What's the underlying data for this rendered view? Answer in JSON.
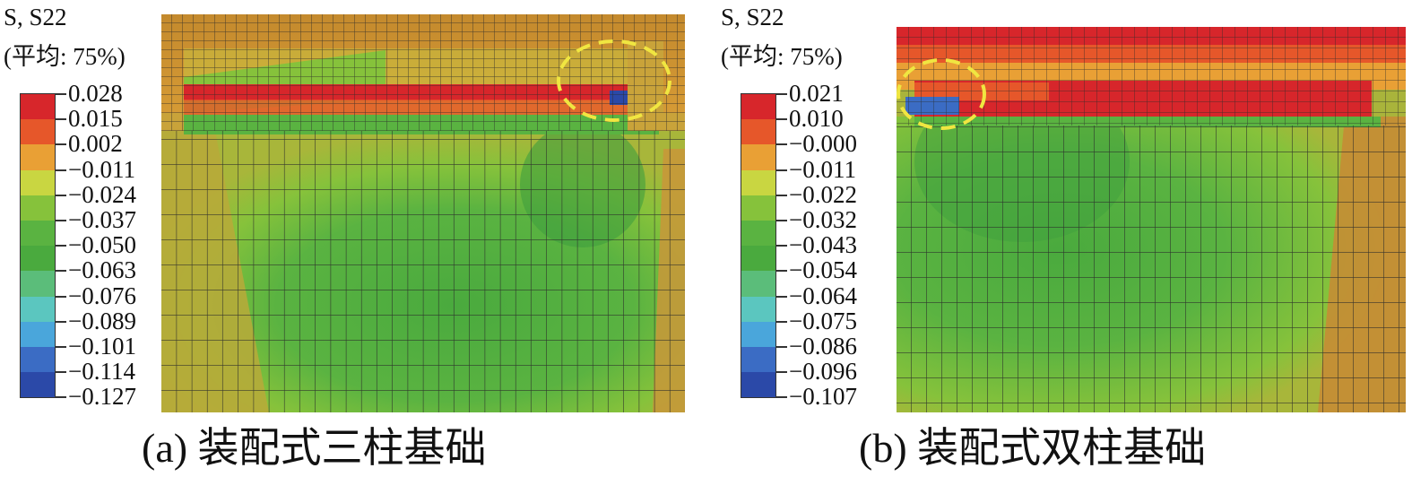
{
  "panels": [
    {
      "id": "a",
      "legend": {
        "title_line1": "S, S22",
        "title_line2": "(平均: 75%)",
        "values": [
          "0.028",
          "0.015",
          "0.002",
          "−0.011",
          "−0.024",
          "−0.037",
          "−0.050",
          "−0.063",
          "−0.076",
          "−0.089",
          "−0.101",
          "−0.114",
          "−0.127"
        ]
      },
      "caption": "(a) 装配式三柱基础"
    },
    {
      "id": "b",
      "legend": {
        "title_line1": "S, S22",
        "title_line2": "(平均: 75%)",
        "values": [
          "0.021",
          "0.010",
          "−0.000",
          "−0.011",
          "−0.022",
          "−0.032",
          "−0.043",
          "−0.054",
          "−0.064",
          "−0.075",
          "−0.086",
          "−0.096",
          "−0.107"
        ]
      },
      "caption": "(b) 装配式双柱基础"
    }
  ],
  "colors": {
    "scale": [
      "#d7262b",
      "#e6572a",
      "#e9a035",
      "#c9d641",
      "#86c23b",
      "#5ab341",
      "#4aaa3e",
      "#5bbd7a",
      "#5bc6bf",
      "#4aa6db",
      "#3b6cc4",
      "#2b49a8"
    ],
    "annotation": "#f0e641",
    "grid": "#2a2a2a"
  }
}
